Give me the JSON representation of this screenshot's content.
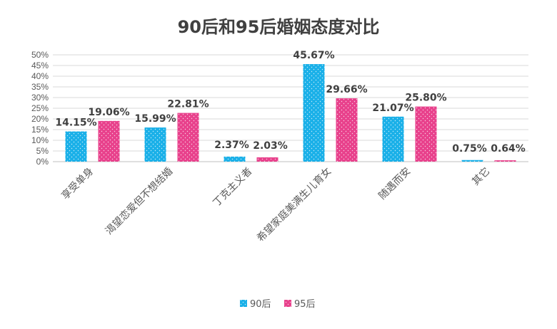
{
  "chart_data": {
    "type": "bar",
    "title": "90后和95后婚姻态度对比",
    "categories": [
      "享受单身",
      "渴望恋爱但不想结婚",
      "丁克主义者",
      "希望家庭美满生儿育女",
      "随遇而安",
      "其它"
    ],
    "series": [
      {
        "name": "90后",
        "color": "#1ab0e8",
        "values": [
          14.15,
          15.99,
          2.37,
          45.67,
          21.07,
          0.75
        ],
        "labels": [
          "14.15%",
          "15.99%",
          "2.37%",
          "45.67%",
          "21.07%",
          "0.75%"
        ]
      },
      {
        "name": "95后",
        "color": "#e8418c",
        "values": [
          19.06,
          22.81,
          2.03,
          29.66,
          25.8,
          0.64
        ],
        "labels": [
          "19.06%",
          "22.81%",
          "2.03%",
          "29.66%",
          "25.80%",
          "0.64%"
        ]
      }
    ],
    "ylim": [
      0,
      50
    ],
    "yticks": [
      "0%",
      "5%",
      "10%",
      "15%",
      "20%",
      "25%",
      "30%",
      "35%",
      "40%",
      "45%",
      "50%"
    ],
    "grid": true,
    "legend_position": "bottom"
  }
}
